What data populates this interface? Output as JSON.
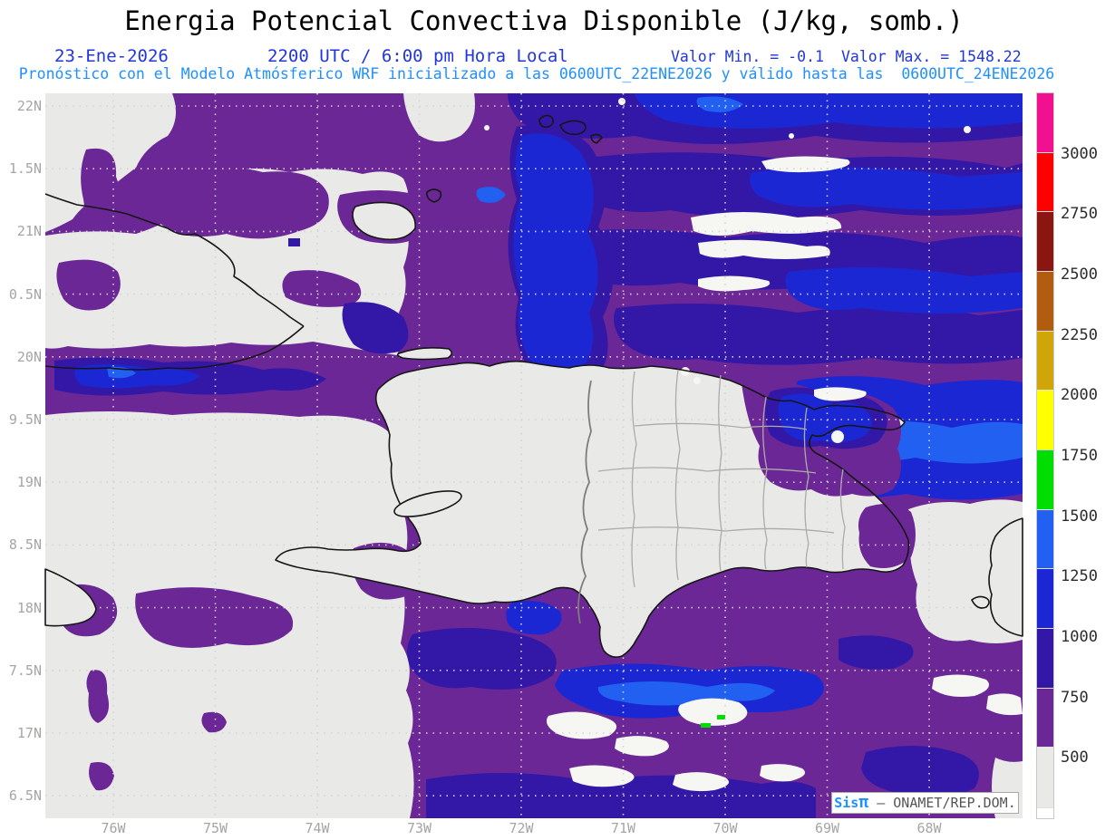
{
  "title": "Energia Potencial Convectiva Disponible (J/kg, somb.)",
  "header": {
    "date": "23-Ene-2026",
    "local_time": "2200 UTC / 6:00 pm Hora Local",
    "value_min": "Valor Min. = -0.1",
    "value_max": "Valor Max. = 1548.22",
    "model_line": "Pronóstico con el Modelo Atmósferico WRF inicializado a las 0600UTC_22ENE2026 y válido hasta las  0600UTC_24ENE2026"
  },
  "axes": {
    "lat_labels": [
      "22N",
      "1.5N",
      "21N",
      "0.5N",
      "20N",
      "9.5N",
      "19N",
      "8.5N",
      "18N",
      "7.5N",
      "17N",
      "6.5N"
    ],
    "lon_labels": [
      "76W",
      "75W",
      "74W",
      "73W",
      "72W",
      "71W",
      "70W",
      "69W",
      "68W"
    ]
  },
  "colorbar": {
    "tick_labels": [
      "3000",
      "2750",
      "2500",
      "2250",
      "2000",
      "1750",
      "1500",
      "1250",
      "1000",
      "750",
      "500"
    ],
    "segment_colors_top_to_bottom": [
      "#f01090",
      "#ff0000",
      "#8b1510",
      "#b25c10",
      "#cfa50a",
      "#ffff00",
      "#00dd00",
      "#2160f0",
      "#1c27d4",
      "#3318a8",
      "#6b2795",
      "#e9e9e7"
    ]
  },
  "map_colors": {
    "background": "#e9e9e7",
    "cape_500_750_purple": "#6b2795",
    "cape_750_1000_indigo": "#3318a8",
    "cape_1000_1250_blue": "#1c27d4",
    "cape_1250_1500_bright_blue": "#2160f0",
    "cape_1500_1750_green": "#00dd00",
    "low_cape_white": "#f6f6f3"
  },
  "credit": {
    "app": "Sis",
    "pi": "π",
    "separator": "—",
    "org": "ONAMET/REP.DOM."
  }
}
